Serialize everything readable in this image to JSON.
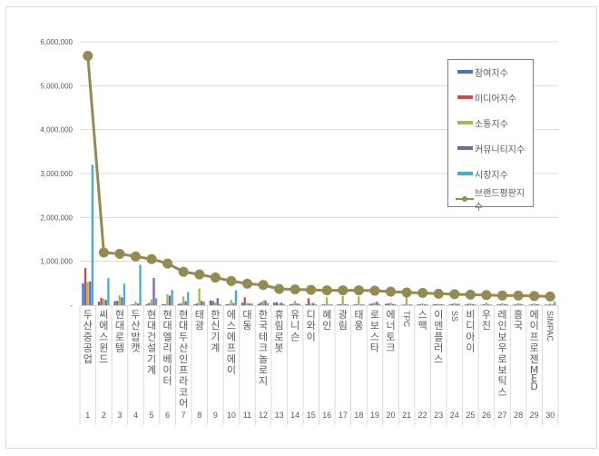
{
  "chart_data": {
    "type": "bar+line",
    "title": "",
    "xlabel": "",
    "ylabel": "",
    "ylim": [
      0,
      6000000
    ],
    "yticks": [
      {
        "value": 0,
        "label": "-"
      },
      {
        "value": 1000000,
        "label": "1,000,000"
      },
      {
        "value": 2000000,
        "label": "2,000,000"
      },
      {
        "value": 3000000,
        "label": "3,000,000"
      },
      {
        "value": 4000000,
        "label": "4,000,000"
      },
      {
        "value": 5000000,
        "label": "5,000,000"
      },
      {
        "value": 6000000,
        "label": "6,000,000"
      }
    ],
    "grid": true,
    "legend_position": "right-top",
    "ranks": [
      1,
      2,
      3,
      4,
      5,
      6,
      7,
      8,
      9,
      10,
      11,
      12,
      13,
      14,
      15,
      16,
      17,
      18,
      19,
      20,
      21,
      22,
      23,
      24,
      25,
      26,
      27,
      28,
      29,
      30
    ],
    "categories": [
      "두산중공업",
      "씨에스윈드",
      "현대로템",
      "두산밥캣",
      "현대건설기계",
      "현대엘리베이터",
      "현대두산인프라코어",
      "태광",
      "한신기계",
      "에스에프에이",
      "대동",
      "한국테크놀로지",
      "휴림로봇",
      "유니슨",
      "디와이",
      "혜인",
      "광림",
      "태웅",
      "로보스타",
      "에너토크",
      "TPC",
      "스맥",
      "이엔플러스",
      "SS",
      "비디아이",
      "우진",
      "레인보우로보틱스",
      "흥국",
      "에이프로젠MED",
      "SIMPAC"
    ],
    "series": [
      {
        "name": "참여지수",
        "type": "bar",
        "color": "#4472c4",
        "values": [
          500000,
          80000,
          90000,
          10000,
          25000,
          20000,
          30000,
          20000,
          110000,
          20000,
          60000,
          30000,
          60000,
          20000,
          20000,
          15000,
          20000,
          15000,
          30000,
          30000,
          10000,
          15000,
          20000,
          15000,
          15000,
          10000,
          15000,
          10000,
          10000,
          10000
        ]
      },
      {
        "name": "미디어지수",
        "type": "bar",
        "color": "#c0504d",
        "values": [
          850000,
          170000,
          100000,
          20000,
          50000,
          25000,
          40000,
          40000,
          100000,
          30000,
          180000,
          60000,
          70000,
          30000,
          160000,
          20000,
          20000,
          20000,
          40000,
          40000,
          15000,
          25000,
          25000,
          30000,
          30000,
          20000,
          20000,
          20000,
          20000,
          15000
        ]
      },
      {
        "name": "소통지수",
        "type": "bar",
        "color": "#9bbb59",
        "values": [
          530000,
          150000,
          230000,
          80000,
          130000,
          250000,
          200000,
          380000,
          60000,
          120000,
          50000,
          100000,
          40000,
          100000,
          40000,
          180000,
          210000,
          200000,
          60000,
          60000,
          200000,
          40000,
          30000,
          50000,
          40000,
          60000,
          50000,
          50000,
          40000,
          40000
        ]
      },
      {
        "name": "커뮤니티지수",
        "type": "bar",
        "color": "#8064a2",
        "values": [
          540000,
          120000,
          180000,
          40000,
          620000,
          220000,
          90000,
          100000,
          160000,
          50000,
          40000,
          110000,
          60000,
          40000,
          50000,
          15000,
          20000,
          15000,
          80000,
          30000,
          15000,
          20000,
          20000,
          30000,
          25000,
          15000,
          20000,
          30000,
          20000,
          15000
        ]
      },
      {
        "name": "시장지수",
        "type": "bar",
        "color": "#4bacc6",
        "values": [
          3200000,
          620000,
          490000,
          920000,
          160000,
          350000,
          300000,
          80000,
          30000,
          340000,
          40000,
          50000,
          30000,
          25000,
          20000,
          20000,
          20000,
          20000,
          30000,
          20000,
          20000,
          15000,
          20000,
          30000,
          20000,
          15000,
          25000,
          15000,
          20000,
          80000
        ]
      },
      {
        "name": "브랜드평판지수",
        "type": "line",
        "color": "#948a54",
        "values": [
          5680000,
          1200000,
          1170000,
          1110000,
          1050000,
          950000,
          760000,
          700000,
          630000,
          550000,
          490000,
          460000,
          370000,
          360000,
          350000,
          340000,
          340000,
          340000,
          330000,
          310000,
          290000,
          280000,
          260000,
          250000,
          240000,
          230000,
          220000,
          220000,
          210000,
          200000
        ]
      }
    ]
  }
}
